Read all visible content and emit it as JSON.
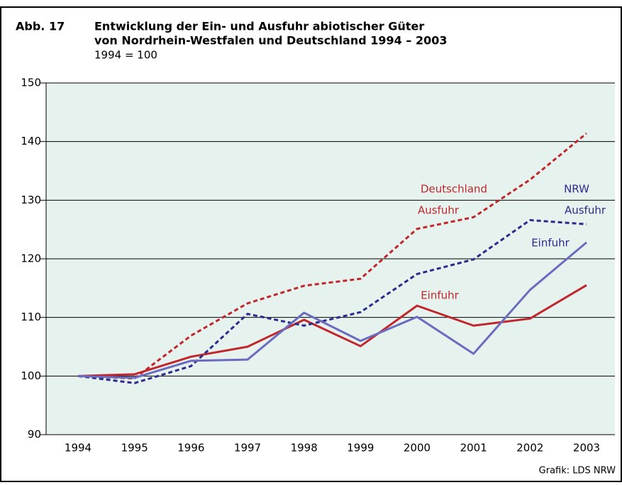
{
  "chart_data": {
    "type": "line",
    "figure_label": "Abb. 17",
    "title": "Entwicklung der Ein- und Ausfuhr abiotischer Güter",
    "title_line2": "von Nordrhein-Westfalen und Deutschland 1994 – 2003",
    "subtitle": "1994 = 100",
    "source": "Grafik: LDS NRW",
    "categories": [
      "1994",
      "1995",
      "1996",
      "1997",
      "1998",
      "1999",
      "2000",
      "2001",
      "2002",
      "2003"
    ],
    "series": [
      {
        "color": "#c0272d",
        "dashed": true,
        "values": [
          100,
          99.6,
          106.9,
          112.4,
          115.4,
          116.6,
          125.1,
          127.1,
          133.5,
          141.4
        ]
      },
      {
        "color": "#c0272d",
        "dashed": false,
        "values": [
          100,
          100.3,
          103.3,
          105.0,
          109.6,
          105.1,
          112.0,
          108.6,
          109.8,
          115.5
        ]
      },
      {
        "color": "#2b2b8c",
        "dashed": true,
        "values": [
          100,
          98.8,
          101.7,
          110.6,
          108.6,
          110.9,
          117.4,
          119.9,
          126.6,
          125.9
        ]
      },
      {
        "color": "#6b6bbf",
        "dashed": false,
        "values": [
          100,
          99.7,
          102.6,
          102.8,
          110.8,
          106.0,
          110.1,
          103.8,
          114.7,
          122.8
        ]
      }
    ],
    "annotations": [
      {
        "text": "Deutschland",
        "color": "#c0272d"
      },
      {
        "text": "Ausfuhr",
        "color": "#c0272d"
      },
      {
        "text": "Einfuhr",
        "color": "#c0272d"
      },
      {
        "text": "NRW",
        "color": "#2b2b8c"
      },
      {
        "text": "Ausfuhr",
        "color": "#2b2b8c"
      },
      {
        "text": "Einfuhr",
        "color": "#2b2b8c"
      }
    ],
    "ylim": [
      90,
      150
    ],
    "yticks": [
      90,
      100,
      110,
      120,
      130,
      140,
      150
    ],
    "grid": true,
    "plot_background": "#e6f2ee"
  }
}
